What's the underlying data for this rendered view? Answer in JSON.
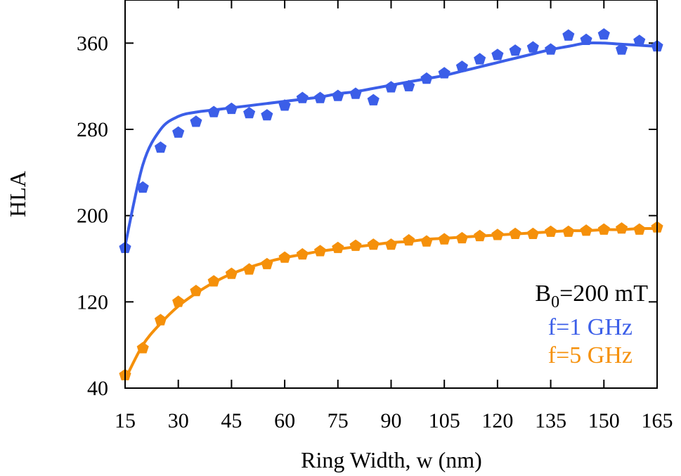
{
  "chart_data": {
    "type": "scatter",
    "xlabel": "Ring Width, w (nm)",
    "ylabel": "HLA",
    "xlim": [
      15,
      165
    ],
    "ylim": [
      40,
      400
    ],
    "xticks": [
      15,
      30,
      45,
      60,
      75,
      90,
      105,
      120,
      135,
      150,
      165
    ],
    "yticks": [
      40,
      120,
      200,
      280,
      360
    ],
    "grid": false,
    "annotation": {
      "b0_base": "B",
      "b0_sub": "0",
      "b0_rest": "=200 mT"
    },
    "series": [
      {
        "name": "f=1 GHz",
        "color": "#3b5ee8",
        "marker": "pentagon",
        "x": [
          15,
          20,
          25,
          30,
          35,
          40,
          45,
          50,
          55,
          60,
          65,
          70,
          75,
          80,
          85,
          90,
          95,
          100,
          105,
          110,
          115,
          120,
          125,
          130,
          135,
          140,
          145,
          150,
          155,
          160,
          165
        ],
        "y": [
          170,
          226,
          263,
          277,
          287,
          296,
          299,
          295,
          293,
          302,
          309,
          309,
          311,
          313,
          307,
          319,
          320,
          327,
          332,
          338,
          345,
          349,
          353,
          356,
          354,
          367,
          363,
          368,
          354,
          362,
          357
        ],
        "fit_y": [
          172,
          247,
          280,
          292,
          296,
          298,
          300,
          302,
          304,
          306,
          308,
          310,
          313,
          315,
          318,
          321,
          324,
          327,
          330,
          334,
          338,
          342,
          346,
          350,
          354,
          357,
          360,
          360,
          359,
          358,
          357
        ]
      },
      {
        "name": "f=5 GHz",
        "color": "#f5900a",
        "marker": "pentagon",
        "x": [
          15,
          20,
          25,
          30,
          35,
          40,
          45,
          50,
          55,
          60,
          65,
          70,
          75,
          80,
          85,
          90,
          95,
          100,
          105,
          110,
          115,
          120,
          125,
          130,
          135,
          140,
          145,
          150,
          155,
          160,
          165
        ],
        "y": [
          52,
          77,
          103,
          120,
          130,
          139,
          146,
          150,
          155,
          161,
          164,
          167,
          170,
          172,
          173,
          173,
          177,
          176,
          178,
          179,
          181,
          182,
          183,
          183,
          185,
          185,
          186,
          187,
          188,
          187,
          189
        ],
        "fit_y": [
          48,
          80,
          100,
          116,
          128,
          138,
          146,
          152,
          157,
          161,
          164,
          167,
          169,
          171,
          173,
          175,
          176,
          178,
          179,
          180,
          181,
          182,
          183,
          184,
          185,
          186,
          186,
          187,
          187,
          188,
          188
        ]
      }
    ]
  }
}
